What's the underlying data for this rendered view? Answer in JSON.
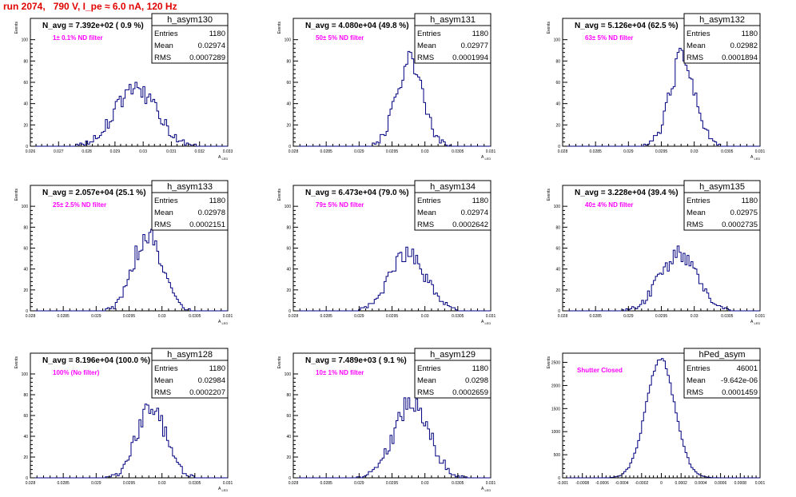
{
  "page_title": "run 2074,   790 V, I_pe ≈ 6.0 nA, 120 Hz",
  "colors": {
    "title": "#e00000",
    "hist": "#000080",
    "annotation": "#ff00ff",
    "frame": "#000000"
  },
  "chart_data": [
    {
      "type": "histogram",
      "name": "h_asym130",
      "avg_label": "N_avg = 7.392e+02 ( 0.9 %)",
      "filter_label": "1± 0.1% ND filter",
      "ylabel": "Events",
      "xlabel": "A_LED",
      "stats": {
        "Entries": "1180",
        "Mean": "0.02974",
        "RMS": "0.0007289"
      },
      "xlim": [
        0.026,
        0.033
      ],
      "ylim": [
        0,
        120
      ],
      "xticks": [
        "0.026",
        "0.027",
        "0.028",
        "0.029",
        "0.03",
        "0.031",
        "0.032",
        "0.033"
      ],
      "yticks": [
        "0",
        "20",
        "40",
        "60",
        "80",
        "100"
      ],
      "mean": 0.02974,
      "rms": 0.0007289,
      "peak": 55
    },
    {
      "type": "histogram",
      "name": "h_asym131",
      "avg_label": "N_avg = 4.080e+04 (49.8 %)",
      "filter_label": "50± 5% ND filter",
      "ylabel": "Events",
      "xlabel": "A_LED",
      "stats": {
        "Entries": "1180",
        "Mean": "0.02977",
        "RMS": "0.0001994"
      },
      "xlim": [
        0.028,
        0.031
      ],
      "ylim": [
        0,
        120
      ],
      "xticks": [
        "0.028",
        "0.0285",
        "0.029",
        "0.0295",
        "0.03",
        "0.0305",
        "0.031"
      ],
      "yticks": [
        "0",
        "20",
        "40",
        "60",
        "80",
        "100"
      ],
      "mean": 0.02977,
      "rms": 0.0001994,
      "peak": 82
    },
    {
      "type": "histogram",
      "name": "h_asym132",
      "avg_label": "N_avg = 5.126e+04 (62.5 %)",
      "filter_label": "63± 5% ND filter",
      "ylabel": "Events",
      "xlabel": "A_LED",
      "stats": {
        "Entries": "1180",
        "Mean": "0.02982",
        "RMS": "0.0001894"
      },
      "xlim": [
        0.028,
        0.031
      ],
      "ylim": [
        0,
        120
      ],
      "xticks": [
        "0.028",
        "0.0285",
        "0.029",
        "0.0295",
        "0.03",
        "0.0305",
        "0.031"
      ],
      "yticks": [
        "0",
        "20",
        "40",
        "60",
        "80",
        "100"
      ],
      "mean": 0.02982,
      "rms": 0.0001894,
      "peak": 82
    },
    {
      "type": "histogram",
      "name": "h_asym133",
      "avg_label": "N_avg = 2.057e+04 (25.1 %)",
      "filter_label": "25± 2.5% ND filter",
      "ylabel": "Events",
      "xlabel": "A_LED",
      "stats": {
        "Entries": "1180",
        "Mean": "0.02978",
        "RMS": "0.0002151"
      },
      "xlim": [
        0.028,
        0.031
      ],
      "ylim": [
        0,
        120
      ],
      "xticks": [
        "0.028",
        "0.0285",
        "0.029",
        "0.0295",
        "0.03",
        "0.0305",
        "0.031"
      ],
      "yticks": [
        "0",
        "20",
        "40",
        "60",
        "80",
        "100"
      ],
      "mean": 0.02978,
      "rms": 0.0002151,
      "peak": 74
    },
    {
      "type": "histogram",
      "name": "h_asym134",
      "avg_label": "N_avg = 6.473e+04 (79.0 %)",
      "filter_label": "79± 5% ND filter",
      "ylabel": "Events",
      "xlabel": "A_LED",
      "stats": {
        "Entries": "1180",
        "Mean": "0.02974",
        "RMS": "0.0002642"
      },
      "xlim": [
        0.028,
        0.031
      ],
      "ylim": [
        0,
        120
      ],
      "xticks": [
        "0.028",
        "0.0285",
        "0.029",
        "0.0295",
        "0.03",
        "0.0305",
        "0.031"
      ],
      "yticks": [
        "0",
        "20",
        "40",
        "60",
        "80",
        "100"
      ],
      "mean": 0.02974,
      "rms": 0.0002642,
      "peak": 56
    },
    {
      "type": "histogram",
      "name": "h_asym135",
      "avg_label": "N_avg = 3.228e+04 (39.4 %)",
      "filter_label": "40± 4% ND filter",
      "ylabel": "Events",
      "xlabel": "A_LED",
      "stats": {
        "Entries": "1180",
        "Mean": "0.02975",
        "RMS": "0.0002735"
      },
      "xlim": [
        0.028,
        0.031
      ],
      "ylim": [
        0,
        120
      ],
      "xticks": [
        "0.028",
        "0.0285",
        "0.029",
        "0.0295",
        "0.03",
        "0.0305",
        "0.031"
      ],
      "yticks": [
        "0",
        "20",
        "40",
        "60",
        "80",
        "100"
      ],
      "mean": 0.02975,
      "rms": 0.0002735,
      "peak": 54
    },
    {
      "type": "histogram",
      "name": "h_asym128",
      "avg_label": "N_avg = 8.196e+04 (100.0 %)",
      "filter_label": "100% (No filter)",
      "ylabel": "Events",
      "xlabel": "A_LED",
      "stats": {
        "Entries": "1180",
        "Mean": "0.02984",
        "RMS": "0.0002207"
      },
      "xlim": [
        0.028,
        0.031
      ],
      "ylim": [
        0,
        120
      ],
      "xticks": [
        "0.028",
        "0.0285",
        "0.029",
        "0.0295",
        "0.03",
        "0.0305",
        "0.031"
      ],
      "yticks": [
        "0",
        "20",
        "40",
        "60",
        "80",
        "100"
      ],
      "mean": 0.02984,
      "rms": 0.0002207,
      "peak": 68
    },
    {
      "type": "histogram",
      "name": "h_asym129",
      "avg_label": "N_avg = 7.489e+03 ( 9.1 %)",
      "filter_label": "10± 1% ND filter",
      "ylabel": "Events",
      "xlabel": "A_LED",
      "stats": {
        "Entries": "1180",
        "Mean": "0.0298",
        "RMS": "0.0002659"
      },
      "xlim": [
        0.028,
        0.031
      ],
      "ylim": [
        0,
        120
      ],
      "xticks": [
        "0.028",
        "0.0285",
        "0.029",
        "0.0295",
        "0.03",
        "0.0305",
        "0.031"
      ],
      "yticks": [
        "0",
        "20",
        "40",
        "60",
        "80",
        "100"
      ],
      "mean": 0.0298,
      "rms": 0.0002659,
      "peak": 72
    },
    {
      "type": "histogram",
      "name": "hPed_asym",
      "avg_label": "",
      "filter_label": "Shutter Closed",
      "ylabel": "Events",
      "xlabel": "",
      "stats": {
        "Entries": "46001",
        "Mean": "-9.642e-06",
        "RMS": "0.0001459"
      },
      "xlim": [
        -0.001,
        0.001
      ],
      "ylim": [
        0,
        2700
      ],
      "xticks": [
        "-0.001",
        "-0.0008",
        "-0.0006",
        "-0.0004",
        "-0.0002",
        "0",
        "0.0002",
        "0.0004",
        "0.0006",
        "0.0008",
        "0.001"
      ],
      "yticks": [
        "0",
        "500",
        "1000",
        "1500",
        "2000",
        "2500"
      ],
      "mean": -9.642e-06,
      "rms": 0.0001459,
      "peak": 2580
    }
  ]
}
